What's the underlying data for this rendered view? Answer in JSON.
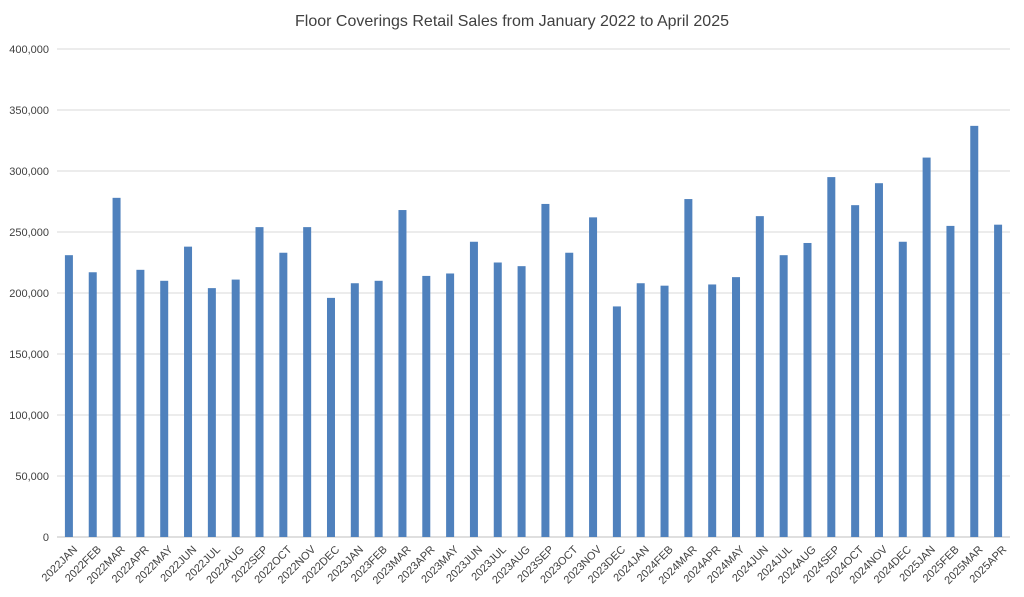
{
  "chart_data": {
    "type": "bar",
    "title": "Floor Coverings Retail Sales from January 2022 to April 2025",
    "xlabel": "",
    "ylabel": "",
    "ylim": [
      0,
      400000
    ],
    "yticks": [
      0,
      50000,
      100000,
      150000,
      200000,
      250000,
      300000,
      350000,
      400000
    ],
    "ytick_labels": [
      "0",
      "50,000",
      "100,000",
      "150,000",
      "200,000",
      "250,000",
      "300,000",
      "350,000",
      "400,000"
    ],
    "grid": true,
    "legend": "none",
    "bar_color": "#4f81bd",
    "categories": [
      "2022JAN",
      "2022FEB",
      "2022MAR",
      "2022APR",
      "2022MAY",
      "2022JUN",
      "2022JUL",
      "2022AUG",
      "2022SEP",
      "2022OCT",
      "2022NOV",
      "2022DEC",
      "2023JAN",
      "2023FEB",
      "2023MAR",
      "2023APR",
      "2023MAY",
      "2023JUN",
      "2023JUL",
      "2023AUG",
      "2023SEP",
      "2023OCT",
      "2023NOV",
      "2023DEC",
      "2024JAN",
      "2024FEB",
      "2024MAR",
      "2024APR",
      "2024MAY",
      "2024JUN",
      "2024JUL",
      "2024AUG",
      "2024SEP",
      "2024OCT",
      "2024NOV",
      "2024DEC",
      "2025JAN",
      "2025FEB",
      "2025MAR",
      "2025APR"
    ],
    "values": [
      231000,
      217000,
      278000,
      219000,
      210000,
      238000,
      204000,
      211000,
      254000,
      233000,
      254000,
      196000,
      208000,
      210000,
      268000,
      214000,
      216000,
      242000,
      225000,
      222000,
      273000,
      233000,
      262000,
      189000,
      208000,
      206000,
      277000,
      207000,
      213000,
      263000,
      231000,
      241000,
      295000,
      272000,
      290000,
      242000,
      311000,
      255000,
      337000,
      256000
    ]
  }
}
